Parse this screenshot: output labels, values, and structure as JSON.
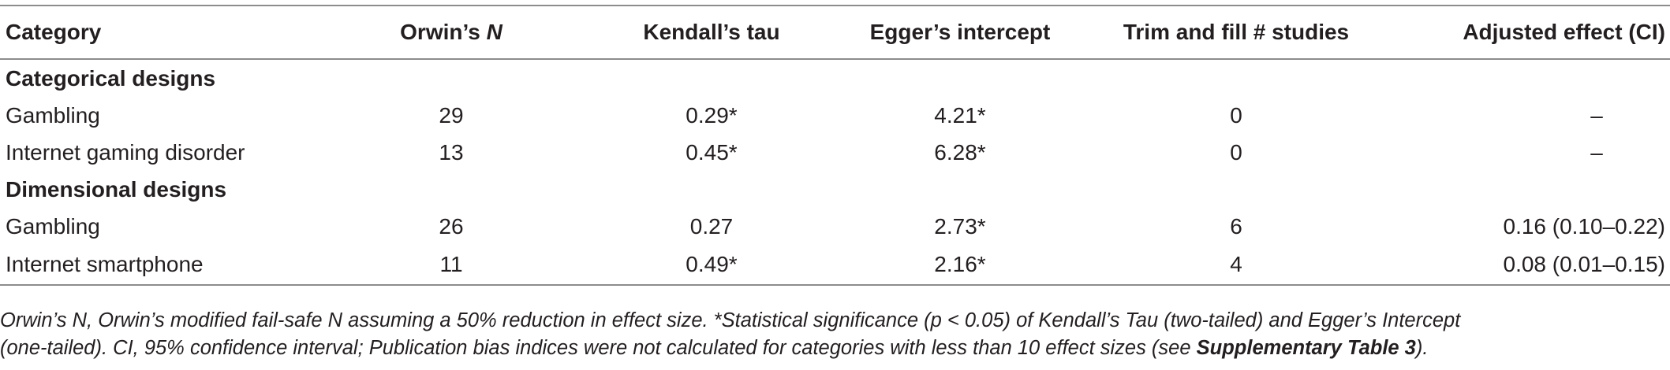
{
  "columns": [
    "Category",
    "Orwin’s ",
    "N",
    "Kendall’s tau",
    "Egger’s intercept",
    "Trim and fill # studies",
    "Adjusted effect (CI)"
  ],
  "sections": [
    {
      "title": "Categorical designs",
      "rows": [
        [
          "Gambling",
          "29",
          "0.29*",
          "4.21*",
          "0",
          "–"
        ],
        [
          "Internet gaming disorder",
          "13",
          "0.45*",
          "6.28*",
          "0",
          "–"
        ]
      ]
    },
    {
      "title": "Dimensional designs",
      "rows": [
        [
          "Gambling",
          "26",
          "0.27",
          "2.73*",
          "6",
          "0.16 (0.10–0.22)"
        ],
        [
          "Internet smartphone",
          "11",
          "0.49*",
          "2.16*",
          "4",
          "0.08 (0.01–0.15)"
        ]
      ]
    }
  ],
  "footnote": {
    "line1": "Orwin’s N, Orwin’s modified fail-safe N assuming a 50% reduction in effect size. *Statistical significance (p < 0.05) of Kendall’s Tau (two-tailed) and Egger’s Intercept",
    "line2_text": "(one-tailed). CI, 95% confidence interval; Publication bias indices were not calculated for categories with less than 10 effect sizes (see ",
    "line2_link": "Supplementary Table 3",
    "line2_end": ")."
  }
}
